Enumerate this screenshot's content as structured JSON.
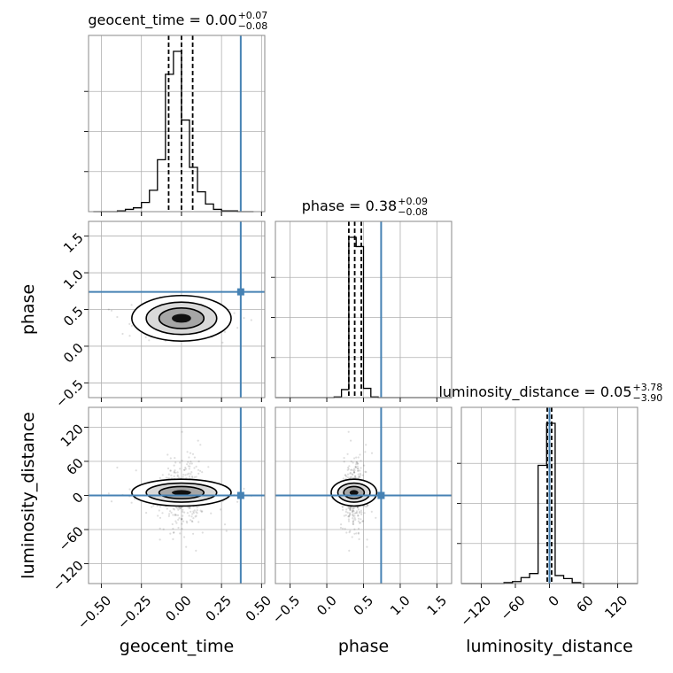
{
  "chart_data": {
    "type": "scatter",
    "description_type": "corner",
    "parameters": [
      {
        "name": "geocent_time",
        "xlabel": "geocent_time",
        "range": [
          -0.58,
          0.52
        ],
        "ticks": [
          -0.5,
          -0.25,
          0.0,
          0.25,
          0.5
        ],
        "tick_labels": [
          "−0.50",
          "−0.25",
          "0.00",
          "0.25",
          "0.50"
        ],
        "truth": 0.37,
        "title": {
          "prefix": "geocent_time = 0.00",
          "plus": "+0.07",
          "minus": "−0.08"
        },
        "quantiles": [
          -0.08,
          0.0,
          0.07
        ],
        "hist_edges": [
          -0.55,
          -0.5,
          -0.45,
          -0.4,
          -0.35,
          -0.3,
          -0.25,
          -0.2,
          -0.15,
          -0.1,
          -0.05,
          0.0,
          0.05,
          0.1,
          0.15,
          0.2,
          0.25,
          0.3,
          0.35,
          0.4,
          0.45
        ],
        "hist_counts": [
          0,
          0,
          0,
          1,
          3,
          5,
          12,
          28,
          68,
          180,
          210,
          120,
          58,
          26,
          10,
          3,
          1,
          1,
          0,
          0
        ]
      },
      {
        "name": "phase",
        "xlabel": "phase",
        "ylabel": "phase",
        "range": [
          -0.7,
          1.7
        ],
        "ticks": [
          -0.5,
          0.0,
          0.5,
          1.0,
          1.5
        ],
        "tick_labels": [
          "−0.5",
          "0.0",
          "0.5",
          "1.0",
          "1.5"
        ],
        "truth": 0.74,
        "title": {
          "prefix": "phase = 0.38",
          "plus": "+0.09",
          "minus": "−0.08"
        },
        "quantiles": [
          0.3,
          0.38,
          0.47
        ],
        "hist_edges": [
          -0.7,
          -0.6,
          -0.5,
          -0.4,
          -0.3,
          -0.2,
          -0.1,
          0.0,
          0.1,
          0.2,
          0.3,
          0.4,
          0.5,
          0.6,
          0.7,
          0.8,
          0.9,
          1.0,
          1.1,
          1.2,
          1.3,
          1.4,
          1.5,
          1.6,
          1.7
        ],
        "hist_counts": [
          0,
          0,
          0,
          0,
          0,
          0,
          0,
          0,
          1,
          13,
          260,
          245,
          15,
          1,
          0,
          0,
          0,
          0,
          0,
          0,
          0,
          0,
          0,
          0
        ]
      },
      {
        "name": "luminosity_distance",
        "xlabel": "luminosity_distance",
        "ylabel": "luminosity_distance",
        "range": [
          -155,
          155
        ],
        "ticks": [
          -120,
          -60,
          0,
          60,
          120
        ],
        "tick_labels": [
          "−120",
          "−60",
          "0",
          "60",
          "120"
        ],
        "truth": 0.0,
        "title": {
          "prefix": "luminosity_distance = 0.05",
          "plus": "+3.78",
          "minus": "−3.90"
        },
        "quantiles": [
          -3.9,
          0.05,
          3.78
        ],
        "hist_edges": [
          -155,
          -140,
          -125,
          -110,
          -95,
          -80,
          -65,
          -50,
          -35,
          -20,
          -5,
          10,
          25,
          40,
          55,
          70,
          85,
          100,
          115,
          130,
          145,
          155
        ],
        "hist_counts": [
          0,
          0,
          0,
          0,
          0,
          1,
          2,
          6,
          10,
          118,
          160,
          8,
          5,
          1,
          0,
          0,
          0,
          0,
          0,
          0,
          0
        ]
      }
    ],
    "ylabels_left": [
      "phase",
      "luminosity_distance"
    ],
    "truth_color": "#4682b4",
    "grid": true
  }
}
